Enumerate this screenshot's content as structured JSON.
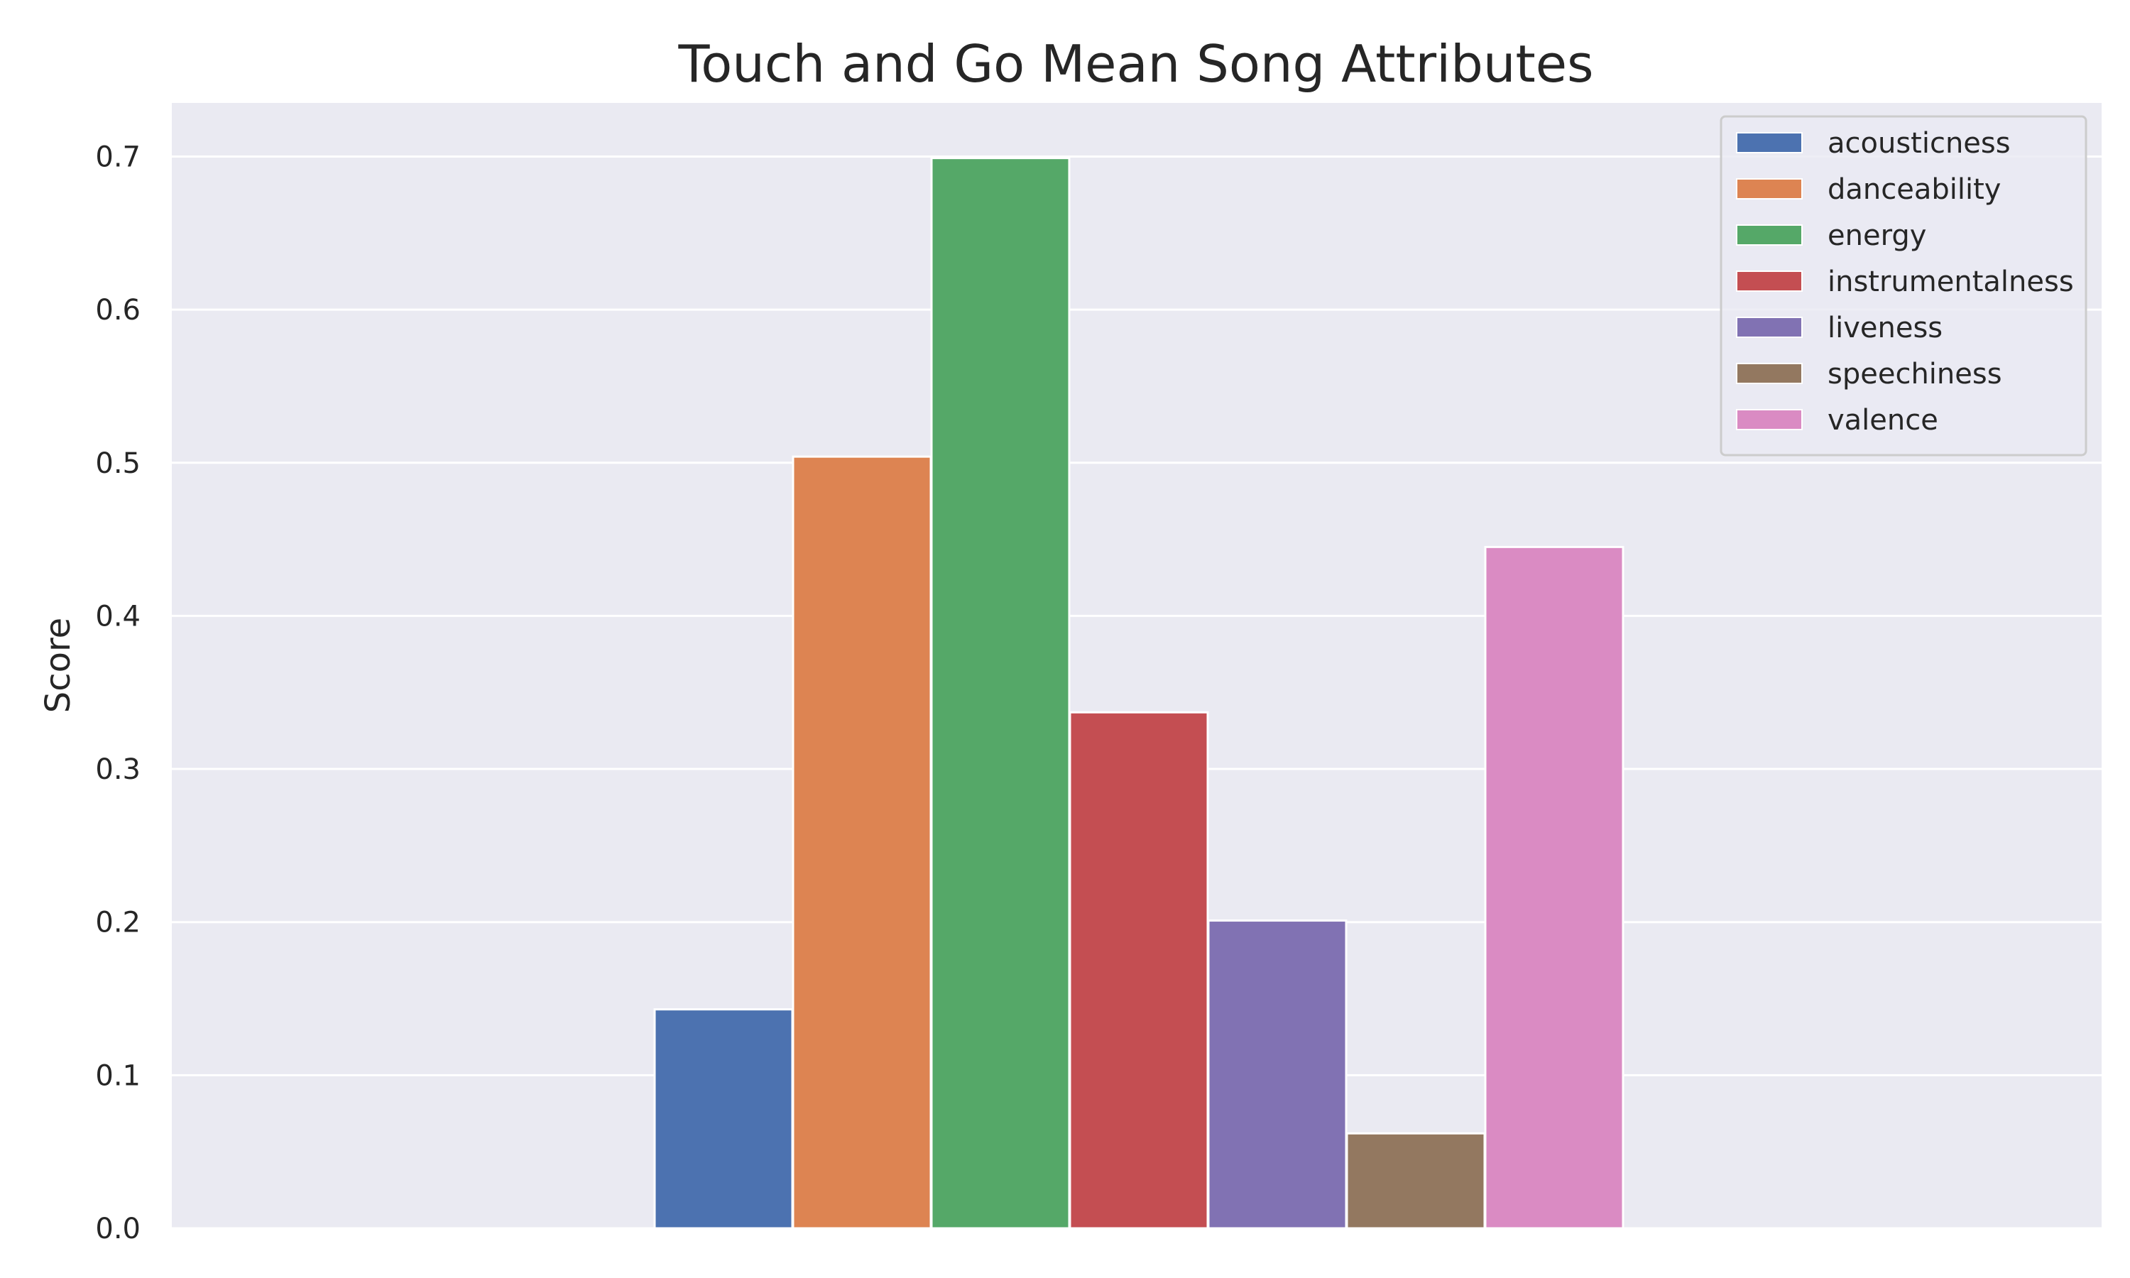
{
  "chart_data": {
    "type": "bar",
    "title": "Touch and Go Mean Song Attributes",
    "xlabel": "",
    "ylabel": "Score",
    "ylim": [
      0,
      0.735
    ],
    "yticks": [
      "0.0",
      "0.1",
      "0.2",
      "0.3",
      "0.4",
      "0.5",
      "0.6",
      "0.7"
    ],
    "grid": true,
    "legend_position": "top-right",
    "background": "#eaeaf2",
    "series": [
      {
        "name": "acousticness",
        "value": 0.143,
        "color": "#4c72b0"
      },
      {
        "name": "danceability",
        "value": 0.504,
        "color": "#dd8452"
      },
      {
        "name": "energy",
        "value": 0.699,
        "color": "#55a868"
      },
      {
        "name": "instrumentalness",
        "value": 0.337,
        "color": "#c44e52"
      },
      {
        "name": "liveness",
        "value": 0.201,
        "color": "#8172b3"
      },
      {
        "name": "speechiness",
        "value": 0.062,
        "color": "#937860"
      },
      {
        "name": "valence",
        "value": 0.445,
        "color": "#da8bc3"
      }
    ]
  }
}
